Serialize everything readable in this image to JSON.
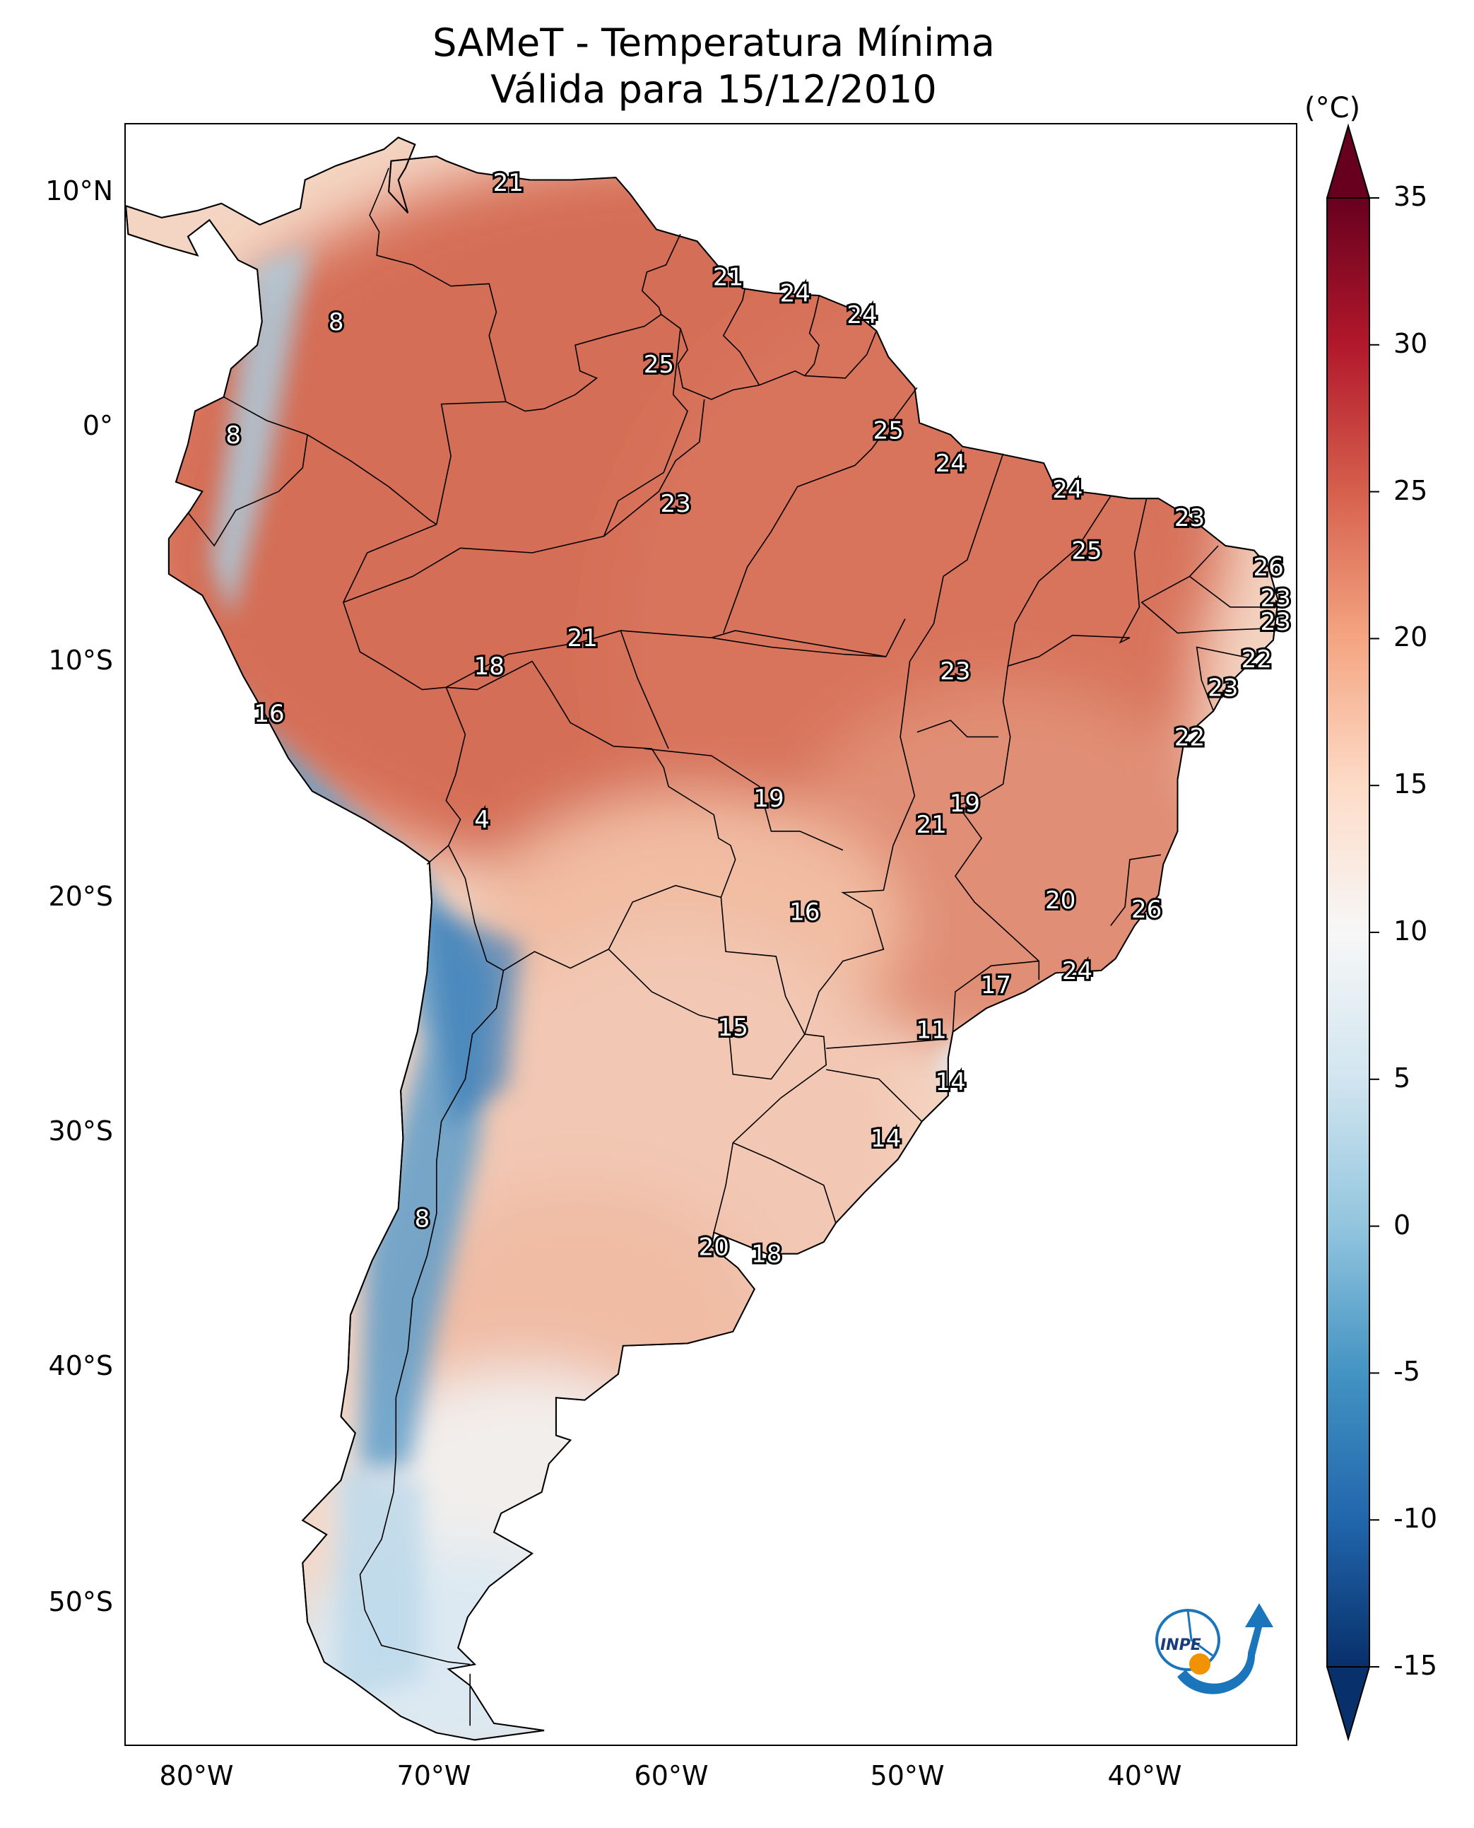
{
  "title": {
    "line1": "SAMeT - Temperatura Mínima",
    "line2": "Válida para 15/12/2010"
  },
  "axes": {
    "lat_labels": [
      "10°N",
      "0°",
      "10°S",
      "20°S",
      "30°S",
      "40°S",
      "50°S"
    ],
    "lon_labels": [
      "80°W",
      "70°W",
      "60°W",
      "50°W",
      "40°W"
    ]
  },
  "colorbar": {
    "unit": "(°C)",
    "min": -15,
    "max": 35,
    "tick_labels": [
      "35",
      "30",
      "25",
      "20",
      "15",
      "10",
      "5",
      "0",
      "-5",
      "-10",
      "-15"
    ],
    "colors": [
      "#08306b",
      "#2166ac",
      "#4393c3",
      "#92c5de",
      "#d1e5f0",
      "#f7f7f7",
      "#fddbc7",
      "#f4a582",
      "#d6604d",
      "#b2182b",
      "#67001f"
    ]
  },
  "city_labels": [
    {
      "text": "21",
      "lon": -67.0,
      "lat": 10.5
    },
    {
      "text": "8",
      "lon": -74.2,
      "lat": 4.6
    },
    {
      "text": "21",
      "lon": -57.8,
      "lat": 6.5
    },
    {
      "text": "24",
      "lon": -55.0,
      "lat": 5.8
    },
    {
      "text": "24",
      "lon": -52.2,
      "lat": 4.9
    },
    {
      "text": "25",
      "lon": -60.7,
      "lat": 2.8
    },
    {
      "text": "8",
      "lon": -78.5,
      "lat": -0.2
    },
    {
      "text": "25",
      "lon": -51.1,
      "lat": 0.0
    },
    {
      "text": "24",
      "lon": -48.5,
      "lat": -1.4
    },
    {
      "text": "23",
      "lon": -60.0,
      "lat": -3.1
    },
    {
      "text": "24",
      "lon": -43.6,
      "lat": -2.5
    },
    {
      "text": "23",
      "lon": -38.5,
      "lat": -3.7
    },
    {
      "text": "25",
      "lon": -42.8,
      "lat": -5.1
    },
    {
      "text": "26",
      "lon": -35.2,
      "lat": -5.8
    },
    {
      "text": "23",
      "lon": -34.9,
      "lat": -7.1
    },
    {
      "text": "23",
      "lon": -34.9,
      "lat": -8.1
    },
    {
      "text": "21",
      "lon": -63.9,
      "lat": -8.8
    },
    {
      "text": "18",
      "lon": -67.8,
      "lat": -10.0
    },
    {
      "text": "22",
      "lon": -35.7,
      "lat": -9.7
    },
    {
      "text": "23",
      "lon": -48.3,
      "lat": -10.2
    },
    {
      "text": "23",
      "lon": -37.1,
      "lat": -10.9
    },
    {
      "text": "16",
      "lon": -77.0,
      "lat": -12.0
    },
    {
      "text": "22",
      "lon": -38.5,
      "lat": -13.0
    },
    {
      "text": "19",
      "lon": -56.1,
      "lat": -15.6
    },
    {
      "text": "19",
      "lon": -47.9,
      "lat": -15.8
    },
    {
      "text": "4",
      "lon": -68.1,
      "lat": -16.5
    },
    {
      "text": "21",
      "lon": -49.3,
      "lat": -16.7
    },
    {
      "text": "20",
      "lon": -43.9,
      "lat": -19.9
    },
    {
      "text": "16",
      "lon": -54.6,
      "lat": -20.4
    },
    {
      "text": "26",
      "lon": -40.3,
      "lat": -20.3
    },
    {
      "text": "24",
      "lon": -43.2,
      "lat": -22.9
    },
    {
      "text": "17",
      "lon": -46.6,
      "lat": -23.5
    },
    {
      "text": "15",
      "lon": -57.6,
      "lat": -25.3
    },
    {
      "text": "11",
      "lon": -49.3,
      "lat": -25.4
    },
    {
      "text": "14",
      "lon": -48.5,
      "lat": -27.6
    },
    {
      "text": "14",
      "lon": -51.2,
      "lat": -30.0
    },
    {
      "text": "8",
      "lon": -70.6,
      "lat": -33.4
    },
    {
      "text": "20",
      "lon": -58.4,
      "lat": -34.6
    },
    {
      "text": "18",
      "lon": -56.2,
      "lat": -34.9
    }
  ],
  "logo": {
    "text": "INPE"
  }
}
